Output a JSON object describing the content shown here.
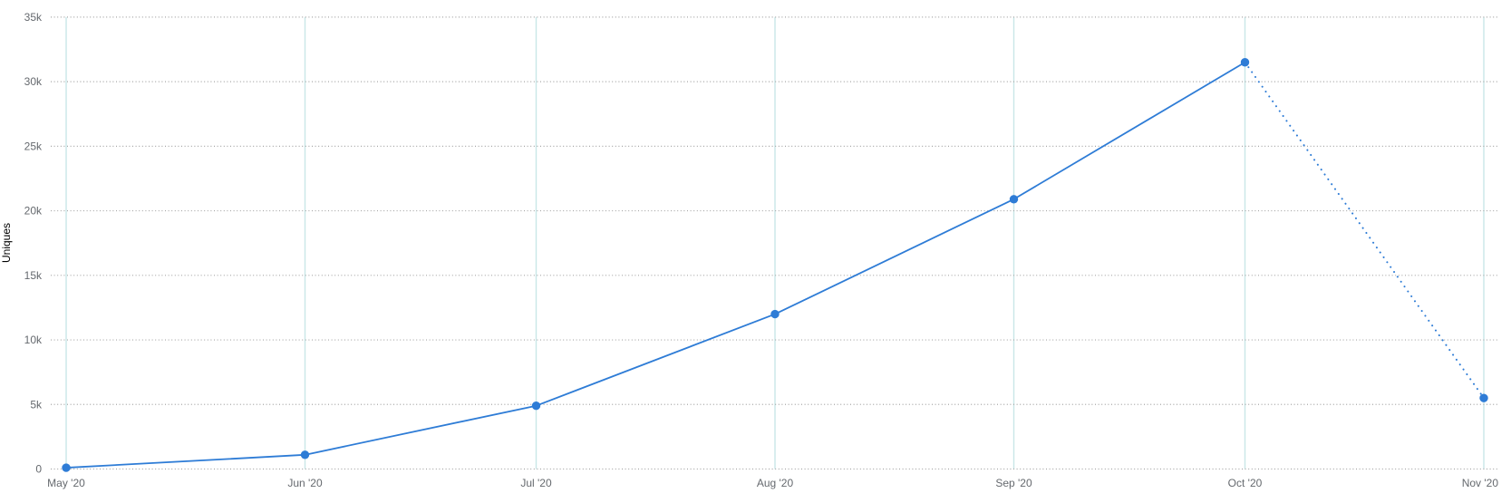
{
  "chart_data": {
    "type": "line",
    "title": "",
    "xlabel": "",
    "ylabel": "Uniques",
    "x_tick_labels": [
      "May '20",
      "Jun '20",
      "Jul '20",
      "Aug '20",
      "Sep '20",
      "Oct '20",
      "Nov '20"
    ],
    "x_day_offsets": [
      0,
      31,
      61,
      92,
      123,
      153,
      184
    ],
    "series": [
      {
        "name": "Uniques",
        "values": [
          100,
          1100,
          4900,
          12000,
          20900,
          31500,
          5500
        ],
        "dotted_from_index": 5
      }
    ],
    "y_ticks": [
      0,
      5000,
      10000,
      15000,
      20000,
      25000,
      30000,
      35000
    ],
    "y_tick_labels": [
      "0",
      "5k",
      "10k",
      "15k",
      "20k",
      "25k",
      "30k",
      "35k"
    ],
    "ylim": [
      0,
      35000
    ],
    "grid": true,
    "legend_position": "none",
    "colors": {
      "line": "#2e7cd6",
      "marker": "#2e7cd6",
      "vertical_grid": "#c9e7e8",
      "horizontal_grid": "#a6a6a6",
      "tick_text": "#65696e",
      "background": "#ffffff"
    }
  }
}
